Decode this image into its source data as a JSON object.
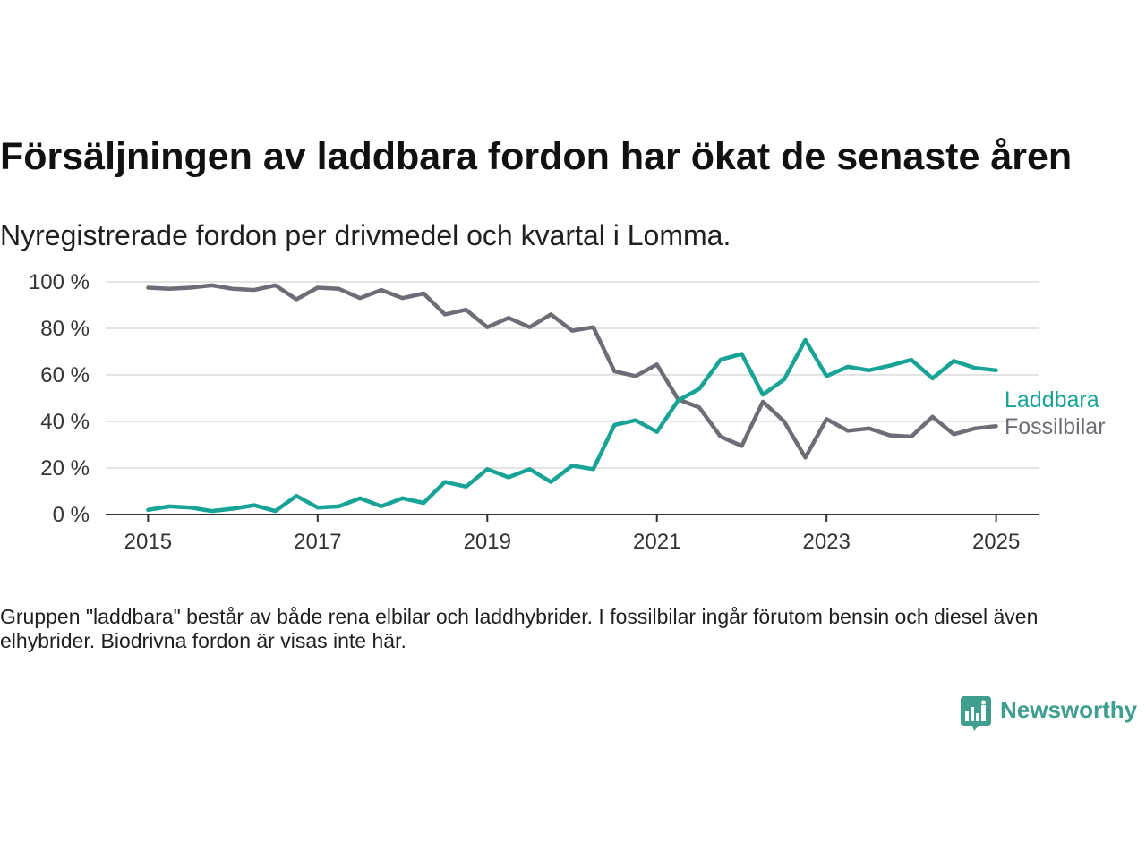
{
  "chart_data": {
    "type": "line",
    "title": "Försäljningen av laddbara fordon har ökat de senaste åren",
    "subtitle": "Nyregistrerade fordon per drivmedel och kvartal i Lomma.",
    "x": [
      "2015-Q1",
      "2015-Q2",
      "2015-Q3",
      "2015-Q4",
      "2016-Q1",
      "2016-Q2",
      "2016-Q3",
      "2016-Q4",
      "2017-Q1",
      "2017-Q2",
      "2017-Q3",
      "2017-Q4",
      "2018-Q1",
      "2018-Q2",
      "2018-Q3",
      "2018-Q4",
      "2019-Q1",
      "2019-Q2",
      "2019-Q3",
      "2019-Q4",
      "2020-Q1",
      "2020-Q2",
      "2020-Q3",
      "2020-Q4",
      "2021-Q1",
      "2021-Q2",
      "2021-Q3",
      "2021-Q4",
      "2022-Q1",
      "2022-Q2",
      "2022-Q3",
      "2022-Q4",
      "2023-Q1",
      "2023-Q2",
      "2023-Q3",
      "2023-Q4",
      "2024-Q1",
      "2024-Q2",
      "2024-Q3",
      "2024-Q4",
      "2025-Q1"
    ],
    "series": [
      {
        "name": "Laddbara",
        "color": "#17a395",
        "values": [
          2,
          3.5,
          3,
          1.5,
          2.5,
          4,
          1.5,
          8,
          3,
          3.5,
          7,
          3.5,
          7,
          5,
          14,
          12,
          19.5,
          16,
          19.5,
          14,
          21,
          19.5,
          38.5,
          40.5,
          35.5,
          49,
          54,
          66.5,
          69,
          51.5,
          58,
          75,
          59.5,
          63.5,
          62,
          64,
          66.5,
          58.5,
          66,
          63,
          62
        ]
      },
      {
        "name": "Fossilbilar",
        "color": "#6e6d75",
        "values": [
          97.5,
          97,
          97.5,
          98.5,
          97,
          96.5,
          98.5,
          92.5,
          97.5,
          97,
          93,
          96.5,
          93,
          95,
          86,
          88,
          80.5,
          84.5,
          80.5,
          86,
          79,
          80.5,
          61.5,
          59.5,
          64.5,
          49.5,
          46,
          33.5,
          29.5,
          48.5,
          40,
          24.5,
          41,
          36,
          37,
          34,
          33.5,
          42,
          34.5,
          37,
          38
        ]
      }
    ],
    "xticks": [
      {
        "value": 2015,
        "label": "2015"
      },
      {
        "value": 2017,
        "label": "2017"
      },
      {
        "value": 2019,
        "label": "2019"
      },
      {
        "value": 2021,
        "label": "2021"
      },
      {
        "value": 2023,
        "label": "2023"
      },
      {
        "value": 2025,
        "label": "2025"
      }
    ],
    "yticks": [
      {
        "value": 0,
        "label": "0 %"
      },
      {
        "value": 20,
        "label": "20 %"
      },
      {
        "value": 40,
        "label": "40 %"
      },
      {
        "value": 60,
        "label": "60 %"
      },
      {
        "value": 80,
        "label": "80 %"
      },
      {
        "value": 100,
        "label": "100 %"
      }
    ],
    "xlim": [
      2014.5,
      2025.5
    ],
    "ylim": [
      0,
      100
    ],
    "grid": "horizontal",
    "legend": "right"
  },
  "footnote": "Gruppen \"laddbara\" består av både rena elbilar och laddhybrider. I fossilbilar ingår förutom bensin och diesel även elhybrider. Biodrivna fordon är visas inte här.",
  "brand": {
    "name": "Newsworthy",
    "color": "#409e8f",
    "icon": "bar-chart-speech-bubble-icon"
  }
}
